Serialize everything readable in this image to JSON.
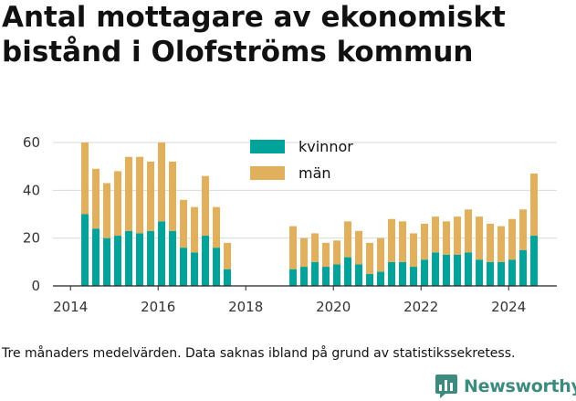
{
  "title": "Antal mottagare av ekonomiskt bistånd i Olofströms kommun",
  "footnote": "Tre månaders medelvärden. Data saknas ibland på grund av statistikssekretess.",
  "brand": {
    "name": "Newsworthy",
    "color": "#3d8a7e"
  },
  "chart_data": {
    "type": "bar",
    "stacked": true,
    "grid": "horizontal",
    "legend_position": "top-center",
    "ylim": [
      0,
      60
    ],
    "yticks": [
      0,
      20,
      40,
      60
    ],
    "xlim": [
      2013.6,
      2025.1
    ],
    "xticks": [
      2014,
      2016,
      2018,
      2020,
      2022,
      2024
    ],
    "xlabel": "",
    "ylabel": "",
    "x": [
      2014.33,
      2014.58,
      2014.83,
      2015.08,
      2015.33,
      2015.58,
      2015.83,
      2016.08,
      2016.33,
      2016.58,
      2016.83,
      2017.08,
      2017.33,
      2017.58,
      2019.08,
      2019.33,
      2019.58,
      2019.83,
      2020.08,
      2020.33,
      2020.58,
      2020.83,
      2021.08,
      2021.33,
      2021.58,
      2021.83,
      2022.08,
      2022.33,
      2022.58,
      2022.83,
      2023.08,
      2023.33,
      2023.58,
      2023.83,
      2024.08,
      2024.33,
      2024.58
    ],
    "series": [
      {
        "name": "kvinnor",
        "color": "#00a39a",
        "values": [
          30,
          24,
          20,
          21,
          23,
          22,
          23,
          27,
          23,
          16,
          14,
          21,
          16,
          7,
          7,
          8,
          10,
          8,
          9,
          12,
          9,
          5,
          6,
          10,
          10,
          8,
          11,
          14,
          13,
          13,
          14,
          11,
          10,
          10,
          11,
          15,
          21
        ]
      },
      {
        "name": "män",
        "color": "#e0b05c",
        "values": [
          30,
          25,
          23,
          27,
          31,
          32,
          29,
          33,
          29,
          20,
          19,
          25,
          17,
          11,
          18,
          12,
          12,
          10,
          10,
          15,
          14,
          13,
          14,
          18,
          17,
          14,
          15,
          15,
          14,
          16,
          18,
          18,
          16,
          15,
          17,
          17,
          26
        ]
      }
    ]
  }
}
